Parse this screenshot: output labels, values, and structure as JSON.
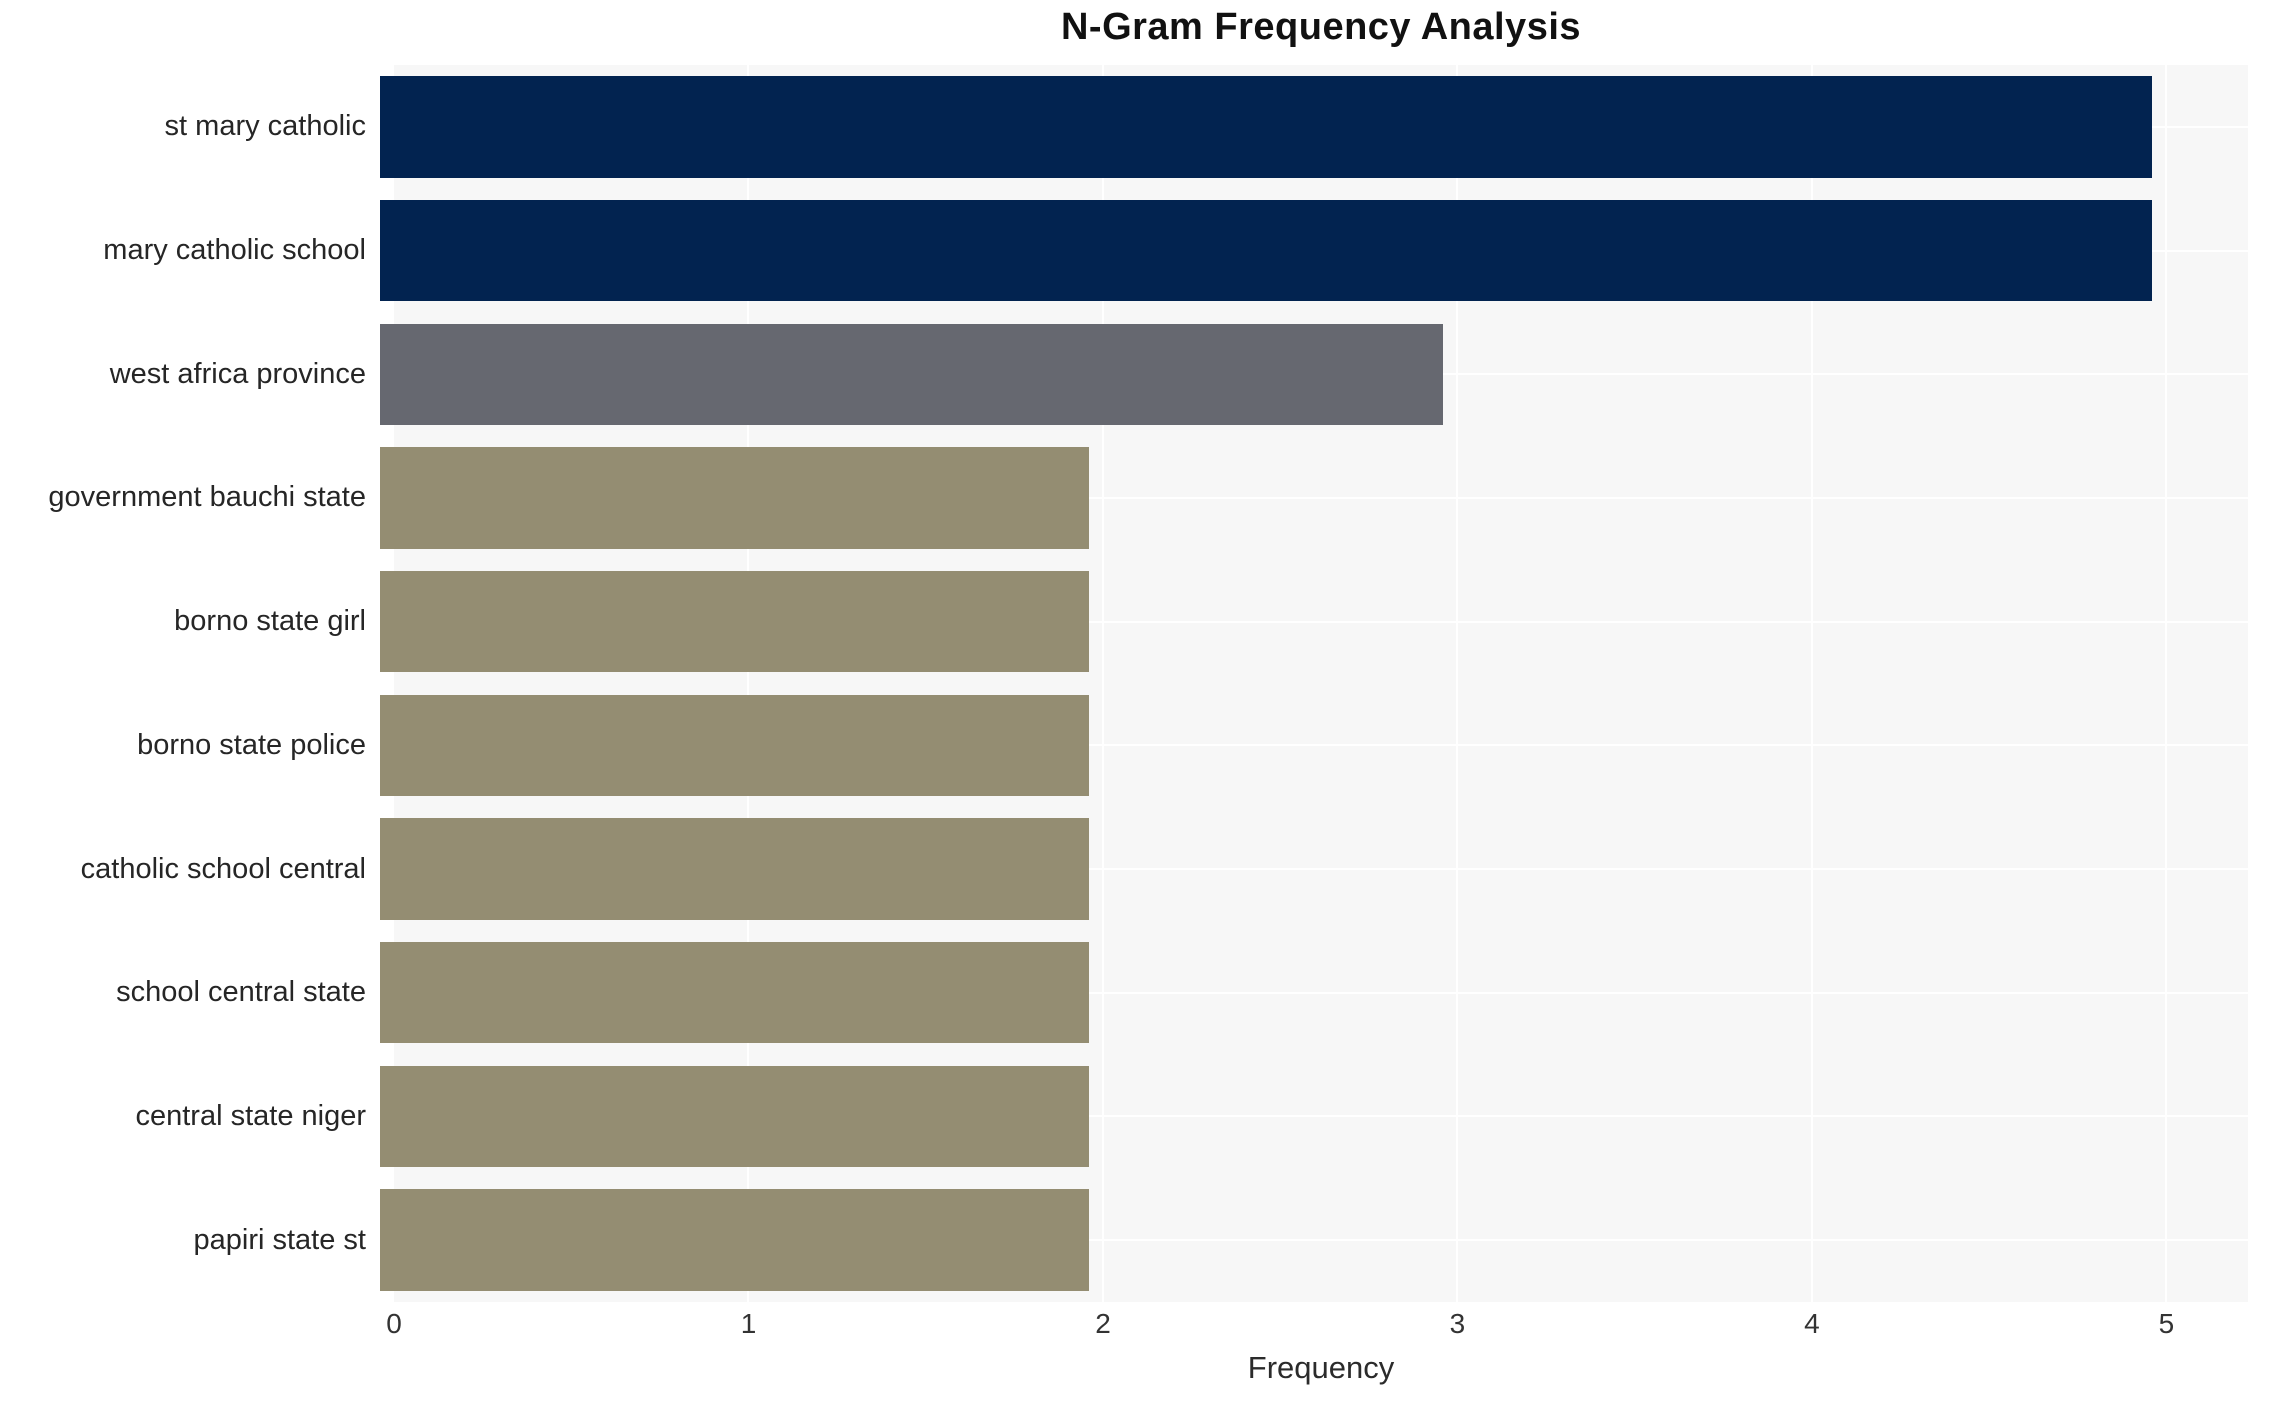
{
  "title": "N-Gram Frequency Analysis",
  "chart_data": {
    "type": "bar",
    "orientation": "horizontal",
    "title": "N-Gram Frequency Analysis",
    "categories": [
      "st mary catholic",
      "mary catholic school",
      "west africa province",
      "government bauchi state",
      "borno state girl",
      "borno state police",
      "catholic school central",
      "school central state",
      "central state niger",
      "papiri state st"
    ],
    "values": [
      5,
      5,
      3,
      2,
      2,
      2,
      2,
      2,
      2,
      2
    ],
    "bar_colors": [
      "#022350",
      "#022350",
      "#666870",
      "#948d72",
      "#948d72",
      "#948d72",
      "#948d72",
      "#948d72",
      "#948d72",
      "#948d72"
    ],
    "xlabel": "Frequency",
    "xticks": [
      0,
      1,
      2,
      3,
      4,
      5
    ],
    "xlim": [
      0,
      5.23
    ],
    "grid": true,
    "legend": "none",
    "plot_background": "#f7f7f7",
    "grid_color": "#ffffff",
    "title_color": "#111111",
    "label_color": "#262626",
    "tick_color": "#333333"
  }
}
